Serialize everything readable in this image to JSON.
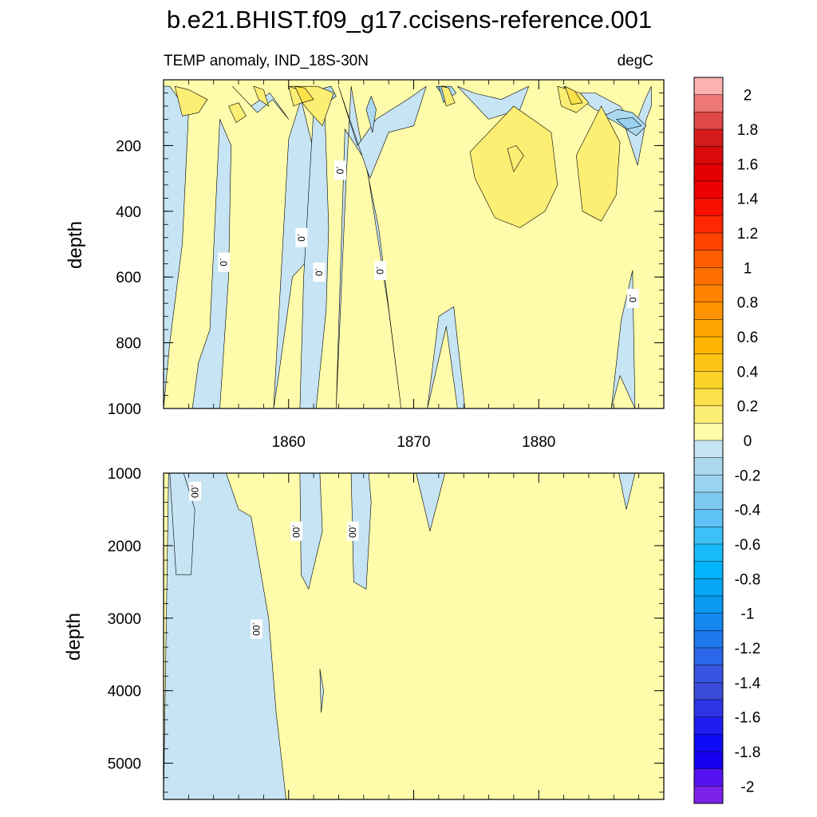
{
  "title": "b.e21.BHIST.f09_g17.ccisens-reference.001",
  "chart_data": [
    {
      "type": "heatmap",
      "panel": "upper",
      "left_label": "TEMP anomaly, IND_18S-30N",
      "right_label": "degC",
      "xlabel": "",
      "ylabel": "depth",
      "xlim": [
        1850,
        1890
      ],
      "ylim": [
        0,
        1000
      ],
      "y_reversed": true,
      "x_ticks": [
        1860,
        1870,
        1880
      ],
      "x_tick_labels": [
        "1860",
        "1870",
        "1880"
      ],
      "y_ticks": [
        200,
        400,
        600,
        800,
        1000
      ],
      "y_tick_labels": [
        "200",
        "400",
        "600",
        "800",
        "1000"
      ],
      "contour_labels": [
        ".0",
        ".0",
        ".0",
        ".0",
        ".0",
        ".0"
      ],
      "background_interval": [
        0,
        0.1
      ],
      "regions": [
        {
          "interval": [
            -0.1,
            0
          ],
          "x": [
            1850,
            1850.5,
            1851.5,
            1852,
            1850.5,
            1850
          ],
          "y": [
            1000,
            800,
            500,
            100,
            20,
            20
          ]
        },
        {
          "interval": [
            -0.1,
            0
          ],
          "x": [
            1852.3,
            1854.5,
            1855.2,
            1855.4,
            1854.5,
            1853.7,
            1852.8,
            1852.3
          ],
          "y": [
            1000,
            1000,
            600,
            200,
            120,
            760,
            860,
            1000
          ]
        },
        {
          "interval": [
            -0.1,
            0
          ],
          "x": [
            1858.8,
            1860,
            1861,
            1861.9,
            1861.5,
            1860.3,
            1859.2,
            1858.8
          ],
          "y": [
            1000,
            180,
            60,
            200,
            550,
            600,
            900,
            1000
          ]
        },
        {
          "interval": [
            -0.1,
            0
          ],
          "x": [
            1860.9,
            1862.2,
            1863,
            1863.2,
            1862.9,
            1862,
            1861.2,
            1860.9
          ],
          "y": [
            1000,
            1000,
            700,
            450,
            100,
            90,
            600,
            1000
          ]
        },
        {
          "interval": [
            -0.1,
            0
          ],
          "x": [
            1863.8,
            1864.6,
            1865,
            1865.6,
            1867.2,
            1869,
            1868,
            1866.2,
            1864.5,
            1863.8
          ],
          "y": [
            1000,
            300,
            20,
            150,
            450,
            1000,
            700,
            250,
            150,
            1000
          ]
        },
        {
          "interval": [
            -0.1,
            0
          ],
          "x": [
            1871.1,
            1872,
            1873.2,
            1874.1,
            1873.5,
            1872.6,
            1871.1
          ],
          "y": [
            1000,
            720,
            690,
            1000,
            1000,
            750,
            1000
          ]
        },
        {
          "interval": [
            -0.1,
            0
          ],
          "x": [
            1885.8,
            1886.6,
            1887.5,
            1887.7,
            1886.5,
            1885.8
          ],
          "y": [
            1000,
            730,
            580,
            1000,
            900,
            1000
          ]
        },
        {
          "interval": [
            -0.1,
            0
          ],
          "x": [
            1855.5,
            1857,
            1858.5,
            1860,
            1858.7,
            1857.5,
            1855.5
          ],
          "y": [
            20,
            80,
            40,
            120,
            60,
            100,
            20
          ]
        },
        {
          "interval": [
            -0.1,
            0
          ],
          "x": [
            1864,
            1865.5,
            1867,
            1869.5,
            1871,
            1870,
            1868,
            1866.5,
            1864.7,
            1864
          ],
          "y": [
            20,
            200,
            120,
            60,
            20,
            140,
            160,
            300,
            100,
            20
          ]
        },
        {
          "interval": [
            -0.1,
            0
          ],
          "x": [
            1873.5,
            1876,
            1878.5,
            1879.2,
            1877,
            1874.8,
            1873.5
          ],
          "y": [
            20,
            120,
            90,
            20,
            60,
            40,
            20
          ]
        },
        {
          "interval": [
            -0.1,
            0
          ],
          "x": [
            1882,
            1884.5,
            1886.8,
            1887.9,
            1888.6,
            1889,
            1889,
            1888.5,
            1887.7,
            1886.5,
            1884.5,
            1882.2,
            1882
          ],
          "y": [
            20,
            90,
            130,
            260,
            120,
            80,
            20,
            60,
            140,
            80,
            40,
            40,
            20
          ]
        },
        {
          "interval": [
            -0.2,
            -0.1
          ],
          "x": [
            1862.3,
            1863.1,
            1863.8,
            1863.4,
            1862.3
          ],
          "y": [
            30,
            70,
            50,
            20,
            30
          ]
        },
        {
          "interval": [
            -0.2,
            -0.1
          ],
          "x": [
            1866.2,
            1866.7,
            1867,
            1866.6,
            1866.2
          ],
          "y": [
            90,
            160,
            90,
            50,
            90
          ]
        },
        {
          "interval": [
            -0.2,
            -0.1
          ],
          "x": [
            1871.8,
            1872.6,
            1873.4,
            1873,
            1872.2,
            1871.8
          ],
          "y": [
            20,
            60,
            40,
            20,
            20,
            20
          ]
        },
        {
          "interval": [
            -0.2,
            -0.1
          ],
          "x": [
            1885.2,
            1886.2,
            1887.8,
            1888.6,
            1887.5,
            1886.3,
            1885.2
          ],
          "y": [
            110,
            130,
            170,
            140,
            100,
            90,
            110
          ]
        },
        {
          "interval": [
            -0.3,
            -0.2
          ],
          "x": [
            1872,
            1872.4,
            1872.9,
            1872.5,
            1872
          ],
          "y": [
            20,
            70,
            40,
            20,
            20
          ]
        },
        {
          "interval": [
            -0.3,
            -0.2
          ],
          "x": [
            1886.2,
            1887.1,
            1888.2,
            1887.5,
            1886.2
          ],
          "y": [
            120,
            150,
            140,
            115,
            120
          ]
        },
        {
          "interval": [
            0.1,
            0.2
          ],
          "x": [
            1874.5,
            1878,
            1881,
            1881.5,
            1880.5,
            1878.5,
            1876.5,
            1874.9,
            1874.5
          ],
          "y": [
            220,
            80,
            160,
            320,
            400,
            450,
            420,
            300,
            220
          ]
        },
        {
          "interval": [
            0.1,
            0.2
          ],
          "x": [
            1883,
            1885,
            1886.5,
            1886.2,
            1885,
            1883.5,
            1883
          ],
          "y": [
            230,
            80,
            190,
            350,
            430,
            400,
            230
          ]
        },
        {
          "interval": [
            0.1,
            0.2
          ],
          "x": [
            1860.1,
            1862.3,
            1863.6,
            1862.7,
            1861.5,
            1860.1
          ],
          "y": [
            20,
            20,
            40,
            140,
            90,
            20
          ]
        },
        {
          "interval": [
            0.1,
            0.2
          ],
          "x": [
            1857.2,
            1858,
            1858.4,
            1857.6,
            1857.2
          ],
          "y": [
            20,
            30,
            80,
            60,
            20
          ]
        },
        {
          "interval": [
            0.1,
            0.2
          ],
          "x": [
            1850.9,
            1852,
            1853.5,
            1852.8,
            1851.5,
            1850.9
          ],
          "y": [
            20,
            30,
            60,
            100,
            110,
            20
          ]
        },
        {
          "interval": [
            0.1,
            0.2
          ],
          "x": [
            1881.5,
            1883.3,
            1884,
            1883,
            1881.8,
            1881.5
          ],
          "y": [
            20,
            40,
            70,
            100,
            80,
            20
          ]
        },
        {
          "interval": [
            0.1,
            0.2
          ],
          "x": [
            1860,
            1860.8,
            1861.6,
            1860.4,
            1860
          ],
          "y": [
            20,
            30,
            60,
            80,
            20
          ]
        },
        {
          "interval": [
            0.1,
            0.2
          ],
          "x": [
            1872.2,
            1872.8,
            1873.3,
            1872.6,
            1872.2
          ],
          "y": [
            20,
            25,
            70,
            80,
            20
          ]
        },
        {
          "interval": [
            0.1,
            0.2
          ],
          "x": [
            1877.5,
            1878.2,
            1878.8,
            1878,
            1877.5
          ],
          "y": [
            210,
            200,
            230,
            280,
            210
          ]
        },
        {
          "interval": [
            0.1,
            0.2
          ],
          "x": [
            1855.2,
            1856,
            1856.6,
            1855.8,
            1855.2
          ],
          "y": [
            80,
            70,
            110,
            130,
            80
          ]
        },
        {
          "interval": [
            0.2,
            0.3
          ],
          "x": [
            1860.5,
            1861.3,
            1862,
            1861.1,
            1860.5
          ],
          "y": [
            20,
            25,
            60,
            70,
            20
          ]
        },
        {
          "interval": [
            0.2,
            0.3
          ],
          "x": [
            1882.1,
            1882.9,
            1883.5,
            1882.6,
            1882.1
          ],
          "y": [
            20,
            35,
            70,
            75,
            20
          ]
        }
      ]
    },
    {
      "type": "heatmap",
      "panel": "lower",
      "xlabel": "",
      "ylabel": "depth",
      "xlim": [
        1850,
        1890
      ],
      "ylim": [
        1000,
        5500
      ],
      "y_reversed": true,
      "y_ticks": [
        1000,
        2000,
        3000,
        4000,
        5000
      ],
      "y_tick_labels": [
        "1000",
        "2000",
        "3000",
        "4000",
        "5000"
      ],
      "contour_labels": [
        ".00",
        ".00",
        ".00",
        ".00"
      ],
      "background_interval": [
        0,
        0.1
      ],
      "regions": [
        {
          "interval": [
            -0.1,
            0
          ],
          "x": [
            1850,
            1850.4,
            1852,
            1853.5,
            1855,
            1856,
            1857,
            1858.4,
            1859,
            1859.8,
            1850
          ],
          "y": [
            5500,
            1000,
            1000,
            1000,
            1000,
            1500,
            1600,
            3000,
            4300,
            5500,
            5500
          ]
        },
        {
          "interval": [
            -0.1,
            0
          ],
          "x": [
            1850.5,
            1851.6,
            1852.5,
            1852.2,
            1851,
            1850.5
          ],
          "y": [
            1000,
            1000,
            1500,
            2400,
            2400,
            1000
          ]
        },
        {
          "interval": [
            -0.1,
            0
          ],
          "x": [
            1860.9,
            1862.5,
            1862.7,
            1862,
            1861.6,
            1861,
            1860.9
          ],
          "y": [
            1000,
            1000,
            1800,
            2300,
            2600,
            2400,
            1000
          ]
        },
        {
          "interval": [
            -0.1,
            0
          ],
          "x": [
            1865,
            1866.4,
            1866.6,
            1866.2,
            1865.2,
            1865
          ],
          "y": [
            1000,
            1000,
            1400,
            2600,
            2500,
            1000
          ]
        },
        {
          "interval": [
            -0.1,
            0
          ],
          "x": [
            1870.2,
            1872.5,
            1871.3,
            1870.2
          ],
          "y": [
            1000,
            1000,
            1800,
            1000
          ]
        },
        {
          "interval": [
            -0.1,
            0
          ],
          "x": [
            1886.4,
            1887.7,
            1887,
            1886.4
          ],
          "y": [
            1000,
            1000,
            1500,
            1000
          ]
        },
        {
          "interval": [
            -0.1,
            0
          ],
          "x": [
            1862.5,
            1862.8,
            1862.6,
            1862.5
          ],
          "y": [
            3700,
            4000,
            4300,
            3700
          ]
        }
      ]
    }
  ],
  "colorbar": {
    "tick_labels": [
      "2",
      "1.8",
      "1.6",
      "1.4",
      "1.2",
      "1",
      "0.8",
      "0.6",
      "0.4",
      "0.2",
      "0",
      "-0.2",
      "-0.4",
      "-0.6",
      "-0.8",
      "-1",
      "-1.2",
      "-1.4",
      "-1.6",
      "-1.8",
      "-2"
    ],
    "colors": [
      "#fcb2b2",
      "#ef7777",
      "#e04848",
      "#d51a1a",
      "#db0a0a",
      "#e40000",
      "#ee0000",
      "#f71000",
      "#ff2800",
      "#ff4200",
      "#ff5c00",
      "#ff6f00",
      "#ff8200",
      "#ff9400",
      "#ffa500",
      "#ffb400",
      "#fcc415",
      "#fcd328",
      "#fde14a",
      "#fdee74",
      "#fefbaa",
      "#c6e4f3",
      "#acd9f0",
      "#99d3ef",
      "#7ec9ef",
      "#5ec2f4",
      "#3cc1f6",
      "#18bbf9",
      "#02b4f9",
      "#05a7f5",
      "#0b98f3",
      "#1488ef",
      "#1e77ec",
      "#2a66e8",
      "#3555e0",
      "#3a4bd8",
      "#2c34e6",
      "#1e1ef2",
      "#0e0bf6",
      "#1600f0",
      "#5512f0",
      "#7d22ea"
    ]
  }
}
